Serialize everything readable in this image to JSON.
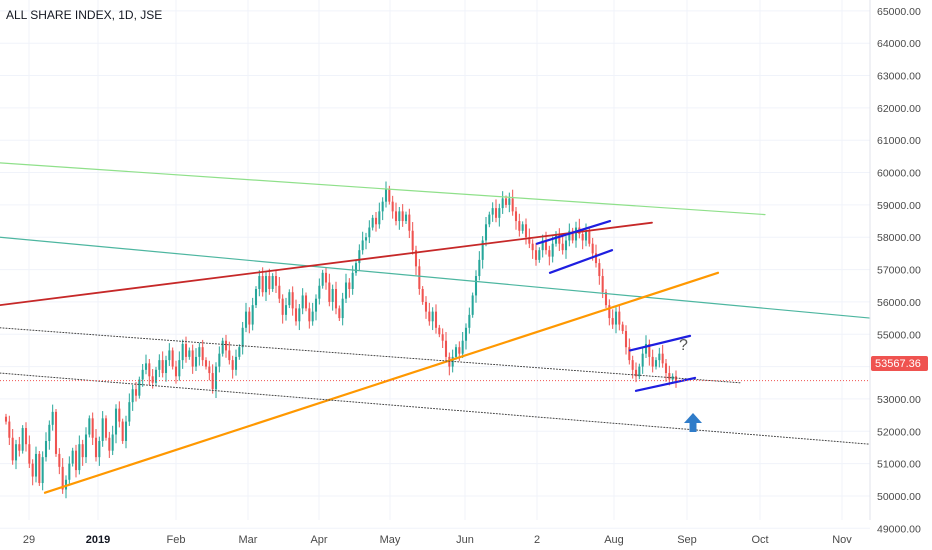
{
  "chart_data": {
    "type": "candlestick",
    "title": "ALL SHARE INDEX, 1D, JSE",
    "ylim": [
      48700,
      65150
    ],
    "y_ticks": [
      "49000.00",
      "50000.00",
      "51000.00",
      "52000.00",
      "53000.00",
      "54000.00",
      "55000.00",
      "56000.00",
      "57000.00",
      "58000.00",
      "59000.00",
      "60000.00",
      "61000.00",
      "62000.00",
      "63000.00",
      "64000.00",
      "65000.00"
    ],
    "x_ticks": [
      "29",
      "2019",
      "Feb",
      "Mar",
      "Apr",
      "May",
      "Jun",
      "2",
      "Aug",
      "Sep",
      "Oct",
      "Nov"
    ],
    "bold_x_tick": "2019",
    "last_price_label": "53567.36",
    "last_price": 53567.36,
    "annotation": "?",
    "grid": true,
    "colors": {
      "up": "#26a69a",
      "down": "#ef5350",
      "green_line": "#8fe08a",
      "teal_line": "#4db6a0",
      "red_line": "#c62828",
      "orange_line": "#ff9800",
      "channel": "#1e1ee0",
      "dotted": "#444444",
      "price_line": "#ef5350",
      "arrow": "#2f7cc9"
    },
    "candles_close": [
      52300,
      51800,
      51100,
      51600,
      51400,
      52100,
      51600,
      51000,
      50600,
      51300,
      50400,
      51200,
      51700,
      52200,
      52600,
      51300,
      50900,
      50200,
      50500,
      51000,
      51400,
      50800,
      51600,
      51200,
      51900,
      52400,
      51800,
      51200,
      51700,
      52400,
      51800,
      51400,
      51900,
      52700,
      52300,
      51700,
      52300,
      52900,
      53300,
      53100,
      53600,
      53900,
      54100,
      53700,
      53500,
      53900,
      54200,
      53800,
      54200,
      54500,
      54000,
      53700,
      54200,
      54700,
      54300,
      54500,
      54000,
      54300,
      54600,
      54200,
      54000,
      53800,
      53300,
      54000,
      54400,
      54800,
      54500,
      54200,
      53900,
      54300,
      54600,
      55200,
      55700,
      55300,
      55900,
      56400,
      56800,
      56300,
      56800,
      56400,
      56800,
      56500,
      56100,
      55600,
      55900,
      56300,
      55800,
      55400,
      55800,
      56200,
      55800,
      55400,
      55700,
      56100,
      56500,
      56900,
      56600,
      56000,
      56400,
      55800,
      55500,
      56100,
      56600,
      56400,
      56900,
      57200,
      57600,
      57900,
      58000,
      58300,
      58600,
      58400,
      58800,
      59100,
      59500,
      59100,
      58800,
      58500,
      58800,
      58500,
      58700,
      58200,
      57600,
      57100,
      56400,
      56000,
      55700,
      55400,
      55700,
      55200,
      55000,
      54800,
      54300,
      54000,
      54300,
      54600,
      54400,
      54800,
      55200,
      55600,
      56200,
      56800,
      57300,
      57900,
      58400,
      58700,
      58900,
      58600,
      58900,
      59200,
      59000,
      59200,
      58800,
      58500,
      58200,
      58400,
      58000,
      57800,
      57600,
      57300,
      57600,
      57900,
      57600,
      57400,
      57800,
      58100,
      57800,
      57600,
      57900,
      58200,
      57900,
      58300,
      58100,
      57900,
      58200,
      57800,
      57500,
      57200,
      56800,
      56300,
      55900,
      55500,
      55300,
      55700,
      55300,
      55100,
      54600,
      54200,
      53900,
      53700,
      54000,
      54400,
      54700,
      54300,
      54000,
      54200,
      54400,
      54100,
      53800,
      53600,
      53700,
      53567.36
    ],
    "trendlines": [
      {
        "name": "green",
        "from": [
          0,
          60300
        ],
        "to": [
          765,
          58700
        ]
      },
      {
        "name": "teal",
        "from": [
          0,
          58000
        ],
        "to": [
          870,
          55500
        ]
      },
      {
        "name": "red",
        "from": [
          0,
          55900
        ],
        "to": [
          652,
          58450
        ]
      },
      {
        "name": "orange",
        "from": [
          45,
          50100
        ],
        "to": [
          718,
          56900
        ]
      },
      {
        "name": "dotted-1",
        "from": [
          0,
          55200
        ],
        "to": [
          740,
          53500
        ]
      },
      {
        "name": "dotted-2",
        "from": [
          0,
          53800
        ],
        "to": [
          870,
          51600
        ]
      },
      {
        "name": "channel-1-top",
        "from": [
          537,
          57800
        ],
        "to": [
          610,
          58500
        ]
      },
      {
        "name": "channel-1-bottom",
        "from": [
          550,
          56900
        ],
        "to": [
          612,
          57600
        ]
      },
      {
        "name": "channel-2-top",
        "from": [
          630,
          54500
        ],
        "to": [
          690,
          54950
        ]
      },
      {
        "name": "channel-2-bottom",
        "from": [
          636,
          53250
        ],
        "to": [
          695,
          53650
        ]
      }
    ]
  }
}
